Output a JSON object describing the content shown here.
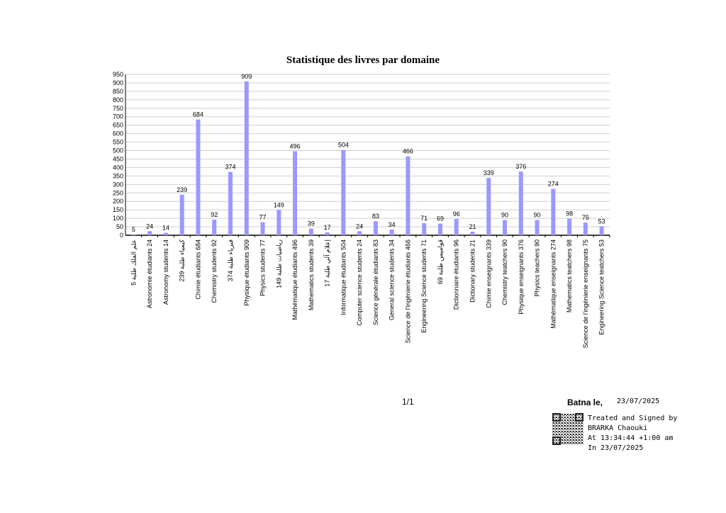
{
  "chart_data": {
    "type": "bar",
    "title": "Statistique des livres par domaine",
    "categories": [
      "علم الفلك طلبة 5",
      "Astronomie étudiants 24",
      "Astronomy students 14",
      "كيمياء طلبة 239",
      "Chimie étudiants 684",
      "Chemistry students 92",
      "فيزياء طلبة 374",
      "Physique étudiants 909",
      "Physics students 77",
      "رياضيات طلبة 149",
      "Mathématique étudiants 496",
      "Mathematics students 39",
      "إعلام آلي طلبة 17",
      "Informatique étudiants 504",
      "Computer science students 24",
      "Science générale étudiants 83",
      "General science students 34",
      "Science de l'ingénierie étudiants 466",
      "Engineering Science students 71",
      "قواميس طلبة 69",
      "Dictionnaire étudiants 96",
      "Dictionary  students 21",
      "Chimie enseignants 339",
      "Chemistry teatchers 90",
      "Physique enseignants 376",
      "Physics teachers 90",
      "Mathématique enseignants 274",
      "Mathematics teatchers 98",
      "Science de l'ingénierie enseignants 75",
      "Engineering Science teatchers 53"
    ],
    "values": [
      5,
      24,
      14,
      239,
      684,
      92,
      374,
      909,
      77,
      149,
      496,
      39,
      17,
      504,
      24,
      83,
      34,
      466,
      71,
      69,
      96,
      21,
      339,
      90,
      376,
      90,
      274,
      98,
      75,
      53
    ],
    "color": "#9999ff",
    "ylim": [
      0,
      950
    ],
    "yticks": [
      0,
      50,
      100,
      150,
      200,
      250,
      300,
      350,
      400,
      450,
      500,
      550,
      600,
      650,
      700,
      750,
      800,
      850,
      900,
      950
    ],
    "grid": true
  },
  "footer": {
    "page": "1/1",
    "place": "Batna le,",
    "date": "23/07/2025",
    "signature": [
      "Treated and Signed by",
      "BRARKA Chaouki",
      "At 13:34:44  +1:00 am",
      "In 23/07/2025"
    ]
  }
}
